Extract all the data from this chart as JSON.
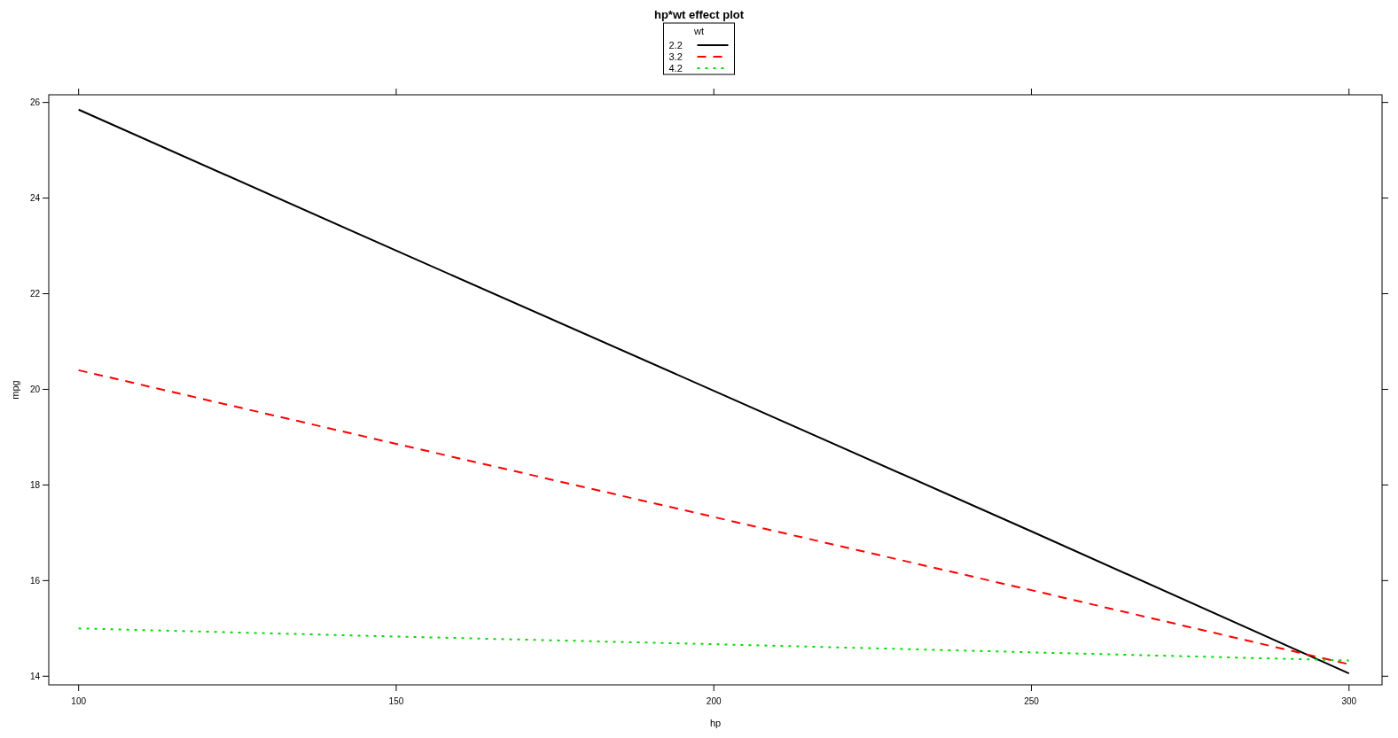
{
  "chart_data": {
    "type": "line",
    "title": "hp*wt effect plot",
    "xlabel": "hp",
    "ylabel": "mpg",
    "legend_title": "wt",
    "legend": "top",
    "x": [
      100,
      150,
      200,
      250,
      300
    ],
    "series": [
      {
        "name": "2.2",
        "color": "#000000",
        "line_style": "solid",
        "values": [
          25.85,
          22.9,
          19.97,
          17.03,
          14.06
        ]
      },
      {
        "name": "3.2",
        "color": "#ff0000",
        "line_style": "dashed",
        "values": [
          20.4,
          18.86,
          17.33,
          15.8,
          14.25
        ]
      },
      {
        "name": "4.2",
        "color": "#00dd00",
        "line_style": "dotted",
        "values": [
          15.0,
          14.83,
          14.67,
          14.5,
          14.33
        ]
      }
    ],
    "xlim": [
      95.3,
      305.2
    ],
    "ylim": [
      13.82,
      26.16
    ],
    "xticks": [
      100,
      150,
      200,
      250,
      300
    ],
    "yticks": [
      14,
      16,
      18,
      20,
      22,
      24,
      26
    ],
    "grid": false
  }
}
